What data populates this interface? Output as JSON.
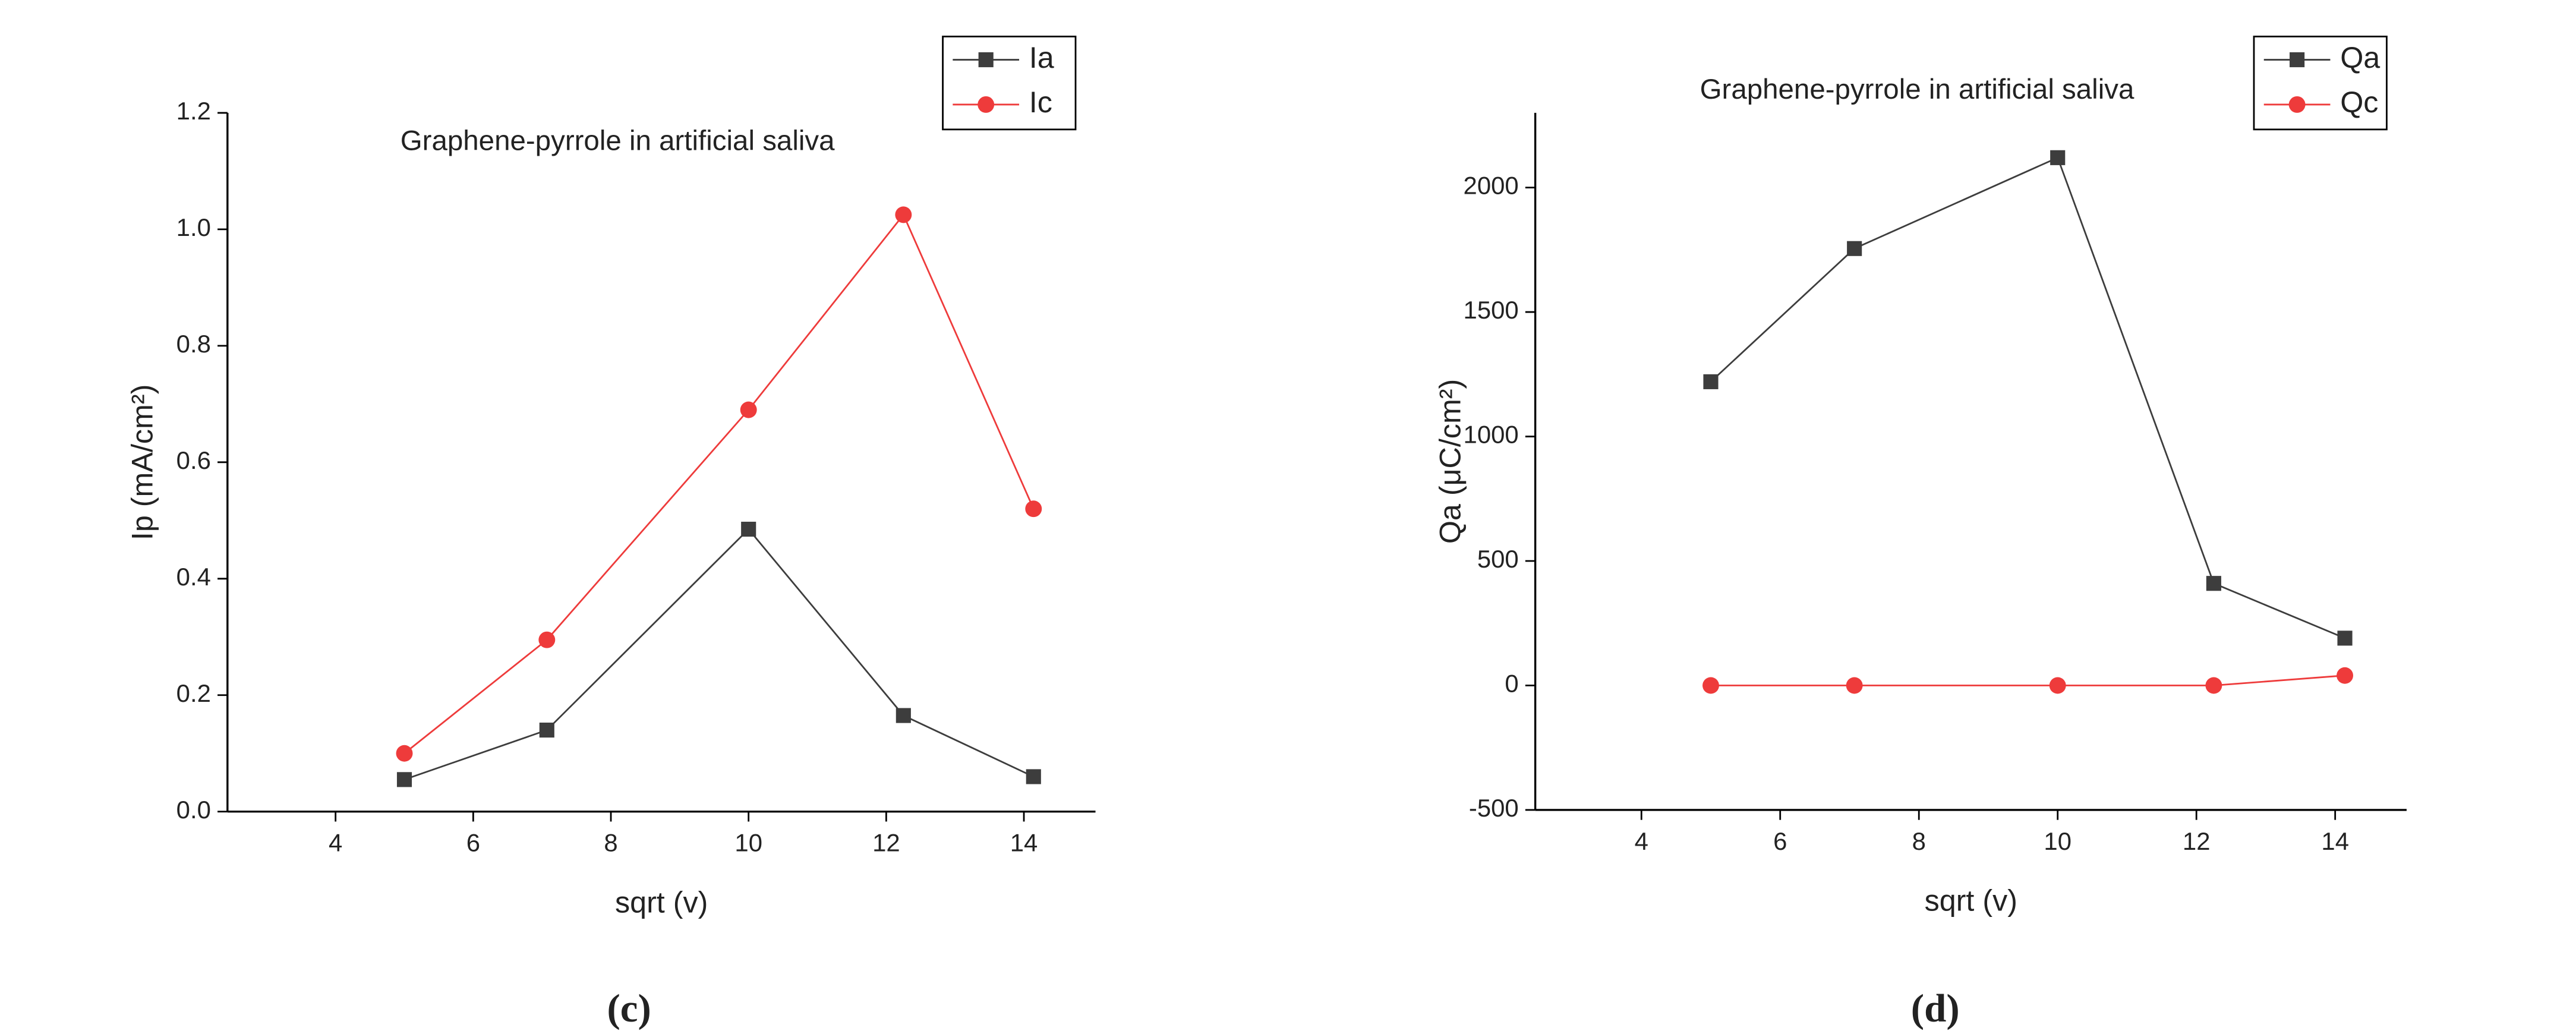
{
  "chart_data": [
    {
      "type": "line",
      "title": "Graphene-pyrrole in artificial saliva",
      "xlabel": "sqrt (v)",
      "ylabel": "Ip (mA/cm²)",
      "panel_label": "(c)",
      "x": [
        5,
        7.07,
        10,
        12.25,
        14.14
      ],
      "series": [
        {
          "name": "Ia",
          "color": "#3d3d3d",
          "marker": "square",
          "values": [
            0.055,
            0.14,
            0.485,
            0.165,
            0.06
          ]
        },
        {
          "name": "Ic",
          "color": "#ee3b3b",
          "marker": "circle",
          "values": [
            0.1,
            0.295,
            0.69,
            1.025,
            0.52
          ]
        }
      ],
      "xlim": [
        2.43,
        15.04
      ],
      "xticks": [
        4,
        6,
        8,
        10,
        12,
        14
      ],
      "ylim": [
        0,
        1.2
      ],
      "yticks": [
        {
          "value": 0,
          "label": "0.0"
        },
        {
          "value": 0.2,
          "label": "0.2"
        },
        {
          "value": 0.4,
          "label": "0.4"
        },
        {
          "value": 0.6,
          "label": "0.6"
        },
        {
          "value": 0.8,
          "label": "0.8"
        },
        {
          "value": 1,
          "label": "1.0"
        },
        {
          "value": 1.2,
          "label": "1.2"
        }
      ],
      "legend": "top-right"
    },
    {
      "type": "line",
      "title": "Graphene-pyrrole in artificial saliva",
      "xlabel": "sqrt (v)",
      "ylabel": "Qa (μC/cm²)",
      "panel_label": "(d)",
      "x": [
        5,
        7.07,
        10,
        12.25,
        14.14
      ],
      "series": [
        {
          "name": "Qa",
          "color": "#3d3d3d",
          "marker": "square",
          "values": [
            1220,
            1755,
            2120,
            410,
            190
          ]
        },
        {
          "name": "Qc",
          "color": "#ee3b3b",
          "marker": "circle",
          "values": [
            0,
            0,
            0,
            0,
            40
          ]
        }
      ],
      "xlim": [
        2.47,
        15.03
      ],
      "xticks": [
        4,
        6,
        8,
        10,
        12,
        14
      ],
      "ylim": [
        -500,
        2300
      ],
      "yticks": [
        -500,
        0,
        500,
        1000,
        1500,
        2000
      ],
      "legend": "top-right"
    }
  ]
}
